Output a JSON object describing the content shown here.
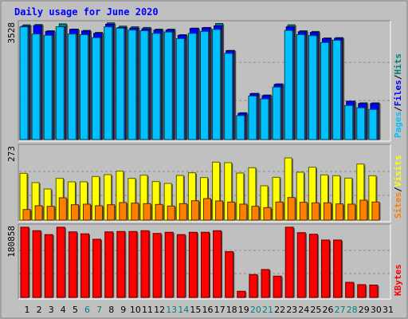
{
  "chart_data": {
    "type": "bar",
    "title": "Daily usage for June 2020",
    "x": [
      "1",
      "2",
      "3",
      "4",
      "5",
      "6",
      "7",
      "8",
      "9",
      "10",
      "11",
      "12",
      "13",
      "14",
      "15",
      "16",
      "17",
      "18",
      "19",
      "20",
      "21",
      "22",
      "23",
      "24",
      "25",
      "26",
      "27",
      "28",
      "29",
      "30",
      "31"
    ],
    "weekend_days": [
      6,
      7,
      13,
      14,
      20,
      21,
      27,
      28
    ],
    "panels": [
      {
        "id": "pages_files_hits",
        "ymax_label": "3528",
        "ymax": 3528,
        "labels": [
          "Pages",
          "Files",
          "Hits"
        ],
        "label_colors": [
          "#00c0ff",
          "#0000ff",
          "#008080"
        ],
        "series": [
          {
            "name": "Hits",
            "color": "#008080",
            "values": [
              3500,
              3510,
              3320,
              3530,
              3370,
              3330,
              3270,
              3560,
              3460,
              3440,
              3420,
              3370,
              3370,
              3200,
              3400,
              3420,
              3540,
              2720,
              820,
              1410,
              1360,
              1700,
              3500,
              3320,
              3300,
              3100,
              3110,
              1170,
              1120,
              1120,
              null
            ]
          },
          {
            "name": "Files",
            "color": "#0000ff",
            "values": [
              3460,
              3480,
              3300,
              3440,
              3360,
              3310,
              3240,
              3520,
              3420,
              3400,
              3380,
              3340,
              3340,
              3180,
              3390,
              3410,
              3470,
              2710,
              800,
              1400,
              1340,
              1680,
              3440,
              3290,
              3270,
              3080,
              3090,
              1170,
              1100,
              1100,
              null
            ]
          },
          {
            "name": "Pages",
            "color": "#00c0ff",
            "values": [
              3440,
              3220,
              3180,
              3440,
              3220,
              3200,
              3110,
              3440,
              3400,
              3340,
              3320,
              3240,
              3280,
              3080,
              3240,
              3300,
              3360,
              2630,
              730,
              1330,
              1240,
              1600,
              3330,
              3200,
              3170,
              2960,
              3030,
              1040,
              970,
              920,
              null
            ]
          }
        ]
      },
      {
        "id": "visits_sites",
        "ymax_label": "273",
        "ymax": 273,
        "labels": [
          "Sites",
          "Visits"
        ],
        "label_colors": [
          "#ff8000",
          "#ffff00"
        ],
        "series": [
          {
            "name": "Visits",
            "color": "#ffff00",
            "values": [
              176,
              141,
              117,
              157,
              144,
              144,
              164,
              171,
              184,
              157,
              169,
              145,
              138,
              168,
              178,
              160,
              218,
              216,
              177,
              197,
              129,
              161,
              234,
              180,
              199,
              170,
              167,
              158,
              211,
              167,
              null
            ]
          },
          {
            "name": "Sites",
            "color": "#ff8000",
            "values": [
              40,
              54,
              52,
              84,
              58,
              60,
              54,
              58,
              66,
              64,
              62,
              59,
              53,
              62,
              73,
              81,
              72,
              68,
              60,
              52,
              47,
              68,
              85,
              67,
              65,
              65,
              61,
              60,
              75,
              68,
              null
            ]
          }
        ]
      },
      {
        "id": "kbytes",
        "ymax_label": "180858",
        "ymax": 180858,
        "labels": [
          "KBytes"
        ],
        "label_colors": [
          "#ff0000"
        ],
        "series": [
          {
            "name": "KBytes",
            "color": "#ff0000",
            "values": [
              181000,
              172000,
              162000,
              181000,
              169000,
              164000,
              150000,
              169000,
              170000,
              170000,
              172000,
              165000,
              168000,
              162000,
              168000,
              168000,
              172000,
              118000,
              16000,
              59000,
              72000,
              55000,
              181000,
              167000,
              163000,
              148000,
              148000,
              39000,
              33000,
              32000,
              null
            ]
          }
        ]
      }
    ]
  }
}
